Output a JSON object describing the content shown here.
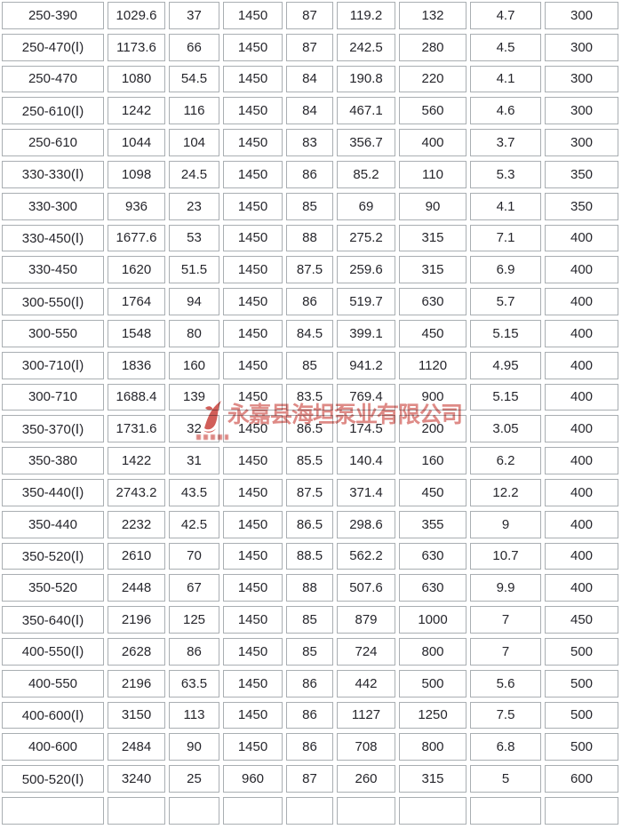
{
  "watermark": {
    "company_text": "永嘉县海坦泵业有限公司",
    "color_hex": "#c9423c"
  },
  "table": {
    "border_color_hex": "#a9aeb2",
    "rows": [
      [
        "250-390",
        "1029.6",
        "37",
        "1450",
        "87",
        "119.2",
        "132",
        "4.7",
        "300"
      ],
      [
        "250-470(Ⅰ)",
        "1173.6",
        "66",
        "1450",
        "87",
        "242.5",
        "280",
        "4.5",
        "300"
      ],
      [
        "250-470",
        "1080",
        "54.5",
        "1450",
        "84",
        "190.8",
        "220",
        "4.1",
        "300"
      ],
      [
        "250-610(Ⅰ)",
        "1242",
        "116",
        "1450",
        "84",
        "467.1",
        "560",
        "4.6",
        "300"
      ],
      [
        "250-610",
        "1044",
        "104",
        "1450",
        "83",
        "356.7",
        "400",
        "3.7",
        "300"
      ],
      [
        "330-330(Ⅰ)",
        "1098",
        "24.5",
        "1450",
        "86",
        "85.2",
        "110",
        "5.3",
        "350"
      ],
      [
        "330-300",
        "936",
        "23",
        "1450",
        "85",
        "69",
        "90",
        "4.1",
        "350"
      ],
      [
        "330-450(Ⅰ)",
        "1677.6",
        "53",
        "1450",
        "88",
        "275.2",
        "315",
        "7.1",
        "400"
      ],
      [
        "330-450",
        "1620",
        "51.5",
        "1450",
        "87.5",
        "259.6",
        "315",
        "6.9",
        "400"
      ],
      [
        "300-550(Ⅰ)",
        "1764",
        "94",
        "1450",
        "86",
        "519.7",
        "630",
        "5.7",
        "400"
      ],
      [
        "300-550",
        "1548",
        "80",
        "1450",
        "84.5",
        "399.1",
        "450",
        "5.15",
        "400"
      ],
      [
        "300-710(Ⅰ)",
        "1836",
        "160",
        "1450",
        "85",
        "941.2",
        "1120",
        "4.95",
        "400"
      ],
      [
        "300-710",
        "1688.4",
        "139",
        "1450",
        "83.5",
        "769.4",
        "900",
        "5.15",
        "400"
      ],
      [
        "350-370(Ⅰ)",
        "1731.6",
        "32",
        "1450",
        "86.5",
        "174.5",
        "200",
        "3.05",
        "400"
      ],
      [
        "350-380",
        "1422",
        "31",
        "1450",
        "85.5",
        "140.4",
        "160",
        "6.2",
        "400"
      ],
      [
        "350-440(Ⅰ)",
        "2743.2",
        "43.5",
        "1450",
        "87.5",
        "371.4",
        "450",
        "12.2",
        "400"
      ],
      [
        "350-440",
        "2232",
        "42.5",
        "1450",
        "86.5",
        "298.6",
        "355",
        "9",
        "400"
      ],
      [
        "350-520(Ⅰ)",
        "2610",
        "70",
        "1450",
        "88.5",
        "562.2",
        "630",
        "10.7",
        "400"
      ],
      [
        "350-520",
        "2448",
        "67",
        "1450",
        "88",
        "507.6",
        "630",
        "9.9",
        "400"
      ],
      [
        "350-640(Ⅰ)",
        "2196",
        "125",
        "1450",
        "85",
        "879",
        "1000",
        "7",
        "450"
      ],
      [
        "400-550(Ⅰ)",
        "2628",
        "86",
        "1450",
        "85",
        "724",
        "800",
        "7",
        "500"
      ],
      [
        "400-550",
        "2196",
        "63.5",
        "1450",
        "86",
        "442",
        "500",
        "5.6",
        "500"
      ],
      [
        "400-600(Ⅰ)",
        "3150",
        "113",
        "1450",
        "86",
        "1127",
        "1250",
        "7.5",
        "500"
      ],
      [
        "400-600",
        "2484",
        "90",
        "1450",
        "86",
        "708",
        "800",
        "6.8",
        "500"
      ],
      [
        "500-520(Ⅰ)",
        "3240",
        "25",
        "960",
        "87",
        "260",
        "315",
        "5",
        "600"
      ]
    ]
  }
}
